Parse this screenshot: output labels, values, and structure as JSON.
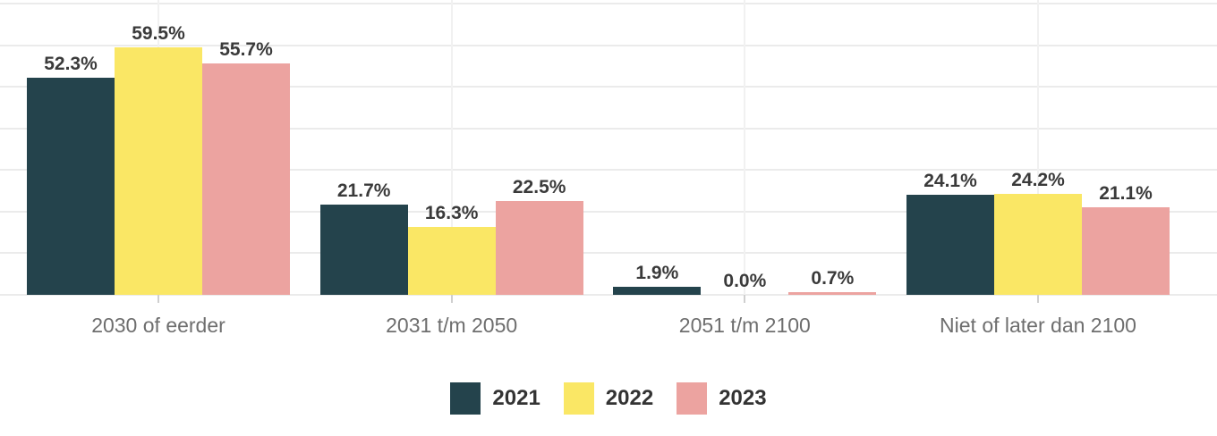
{
  "figure": {
    "background": "#ffffff"
  },
  "chart_data": {
    "type": "bar",
    "title": "",
    "xlabel": "",
    "ylabel": "",
    "categories": [
      "2030 of eerder",
      "2031 t/m 2050",
      "2051 t/m 2100",
      "Niet of later dan 2100"
    ],
    "series": [
      {
        "name": "2021",
        "color": "#24434C",
        "values": [
          52.3,
          21.7,
          1.9,
          24.1
        ],
        "labels": [
          "52.3%",
          "21.7%",
          "1.9%",
          "24.1%"
        ]
      },
      {
        "name": "2022",
        "color": "#FAE765",
        "values": [
          59.5,
          16.3,
          0.0,
          24.2
        ],
        "labels": [
          "59.5%",
          "16.3%",
          "0.0%",
          "24.2%"
        ]
      },
      {
        "name": "2023",
        "color": "#ECA3A0",
        "values": [
          55.7,
          22.5,
          0.7,
          21.1
        ],
        "labels": [
          "55.7%",
          "22.5%",
          "0.7%",
          "21.1%"
        ]
      }
    ],
    "value_suffix": "%",
    "ylim": [
      0,
      70
    ],
    "gridline_interval": 10,
    "grid": true,
    "y_axis_labels_visible": false,
    "legend_position": "bottom",
    "legend": [
      "2021",
      "2022",
      "2023"
    ]
  },
  "colors": {
    "gridline_horizontal": "#EBEBEB",
    "gridline_vertical": "#F1F1F1",
    "axis_tick": "#CFCFCF",
    "value_label": "#3A3A3A",
    "category_label": "#6E6E6E",
    "legend_label": "#333333"
  }
}
